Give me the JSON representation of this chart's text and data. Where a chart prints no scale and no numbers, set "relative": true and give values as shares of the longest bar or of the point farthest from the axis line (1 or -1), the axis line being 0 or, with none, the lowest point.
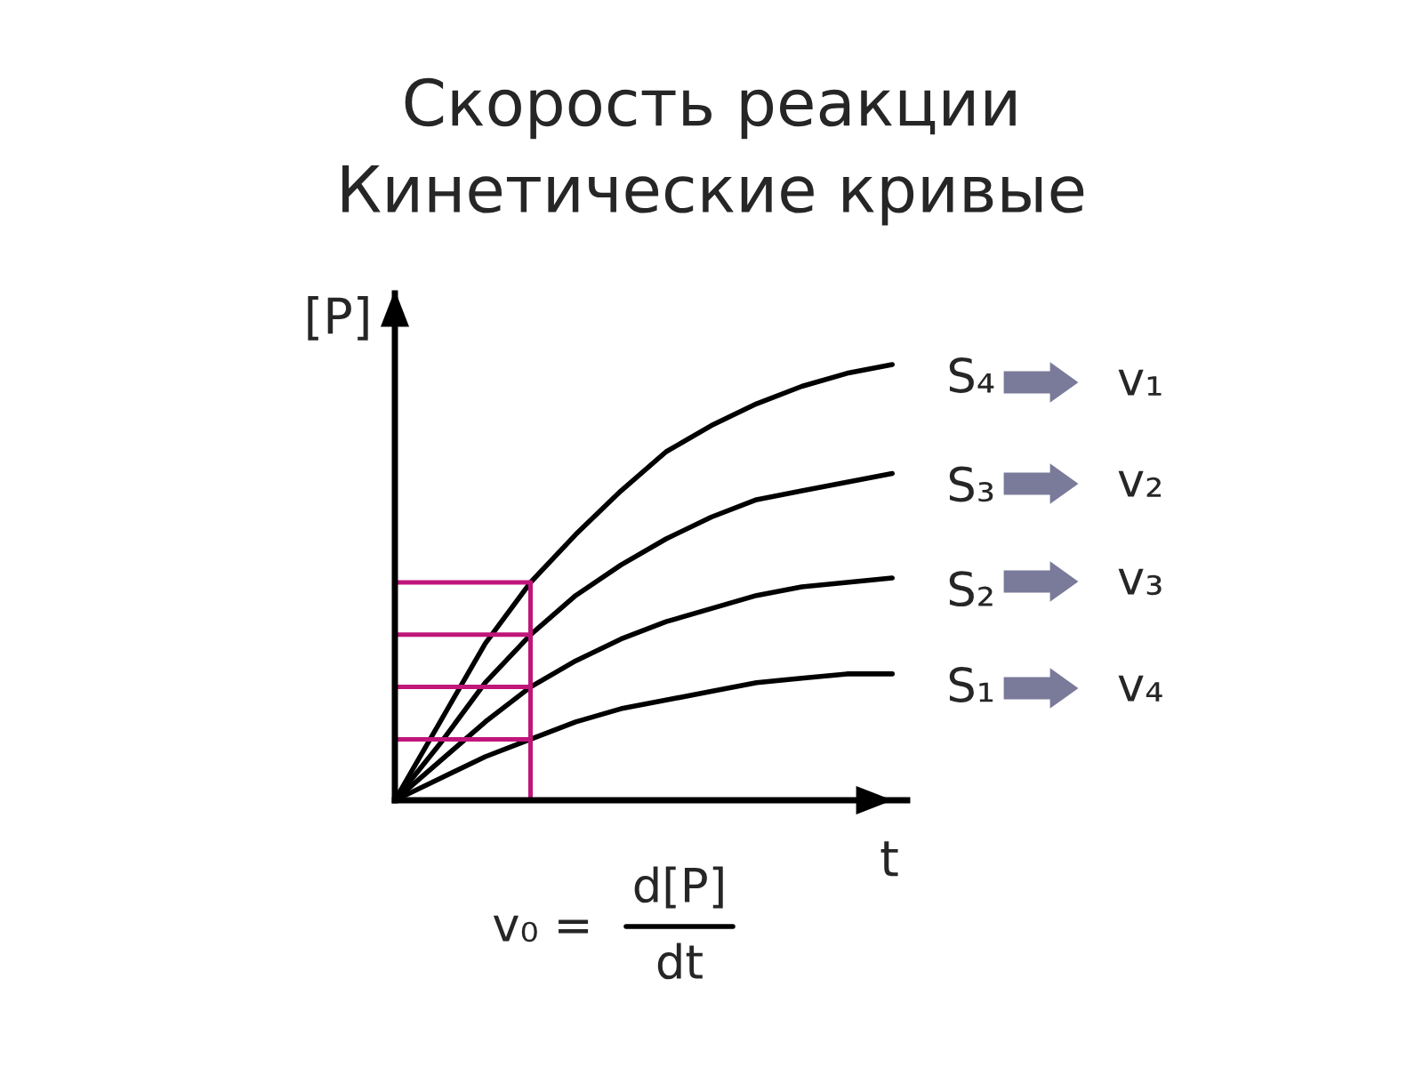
{
  "chart_data": {
    "type": "line",
    "title": "Скорость реакции\nКинетические кривые",
    "xlabel": "t",
    "ylabel": "[P]",
    "relative": true,
    "categories": [
      null,
      null,
      null,
      null,
      null,
      null,
      null,
      null,
      null,
      null,
      null,
      null
    ],
    "series": [
      {
        "name": "S₄",
        "color": "#000000",
        "values": [
          0,
          0.18,
          0.36,
          0.5,
          0.61,
          0.71,
          0.8,
          0.86,
          0.91,
          0.95,
          0.98,
          1.0
        ]
      },
      {
        "name": "S₃",
        "color": "#000000",
        "values": [
          0,
          0.13,
          0.27,
          0.38,
          0.47,
          0.54,
          0.6,
          0.65,
          0.69,
          0.71,
          0.73,
          0.75
        ]
      },
      {
        "name": "S₂",
        "color": "#000000",
        "values": [
          0,
          0.09,
          0.18,
          0.26,
          0.32,
          0.37,
          0.41,
          0.44,
          0.47,
          0.49,
          0.5,
          0.51
        ]
      },
      {
        "name": "S₁",
        "color": "#000000",
        "values": [
          0,
          0.05,
          0.1,
          0.14,
          0.18,
          0.21,
          0.23,
          0.25,
          0.27,
          0.28,
          0.29,
          0.29
        ]
      }
    ],
    "annotations": [
      "v₁",
      "v₂",
      "v₃",
      "v₄",
      "v₀ =",
      "d[P]",
      "dt"
    ],
    "marker": "none",
    "line_style": "solid"
  }
}
